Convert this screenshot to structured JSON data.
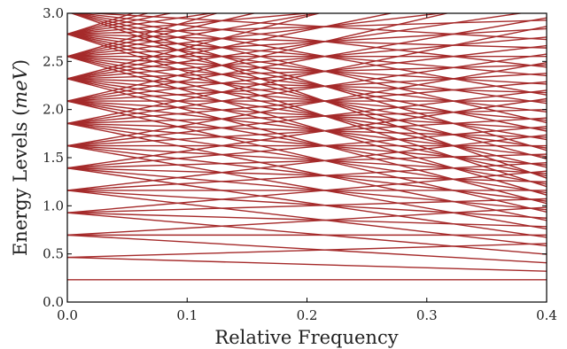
{
  "chart_data": {
    "type": "line",
    "title": "",
    "xlabel": "Relative Frequency",
    "ylabel": "Energy Levels (meV)",
    "ylabel_parts": {
      "text": "Energy Levels (",
      "unit": "meV",
      "close": ")"
    },
    "xlim": [
      0.0,
      0.4
    ],
    "ylim": [
      0.0,
      3.0
    ],
    "xticks": [
      "0.0",
      "0.1",
      "0.2",
      "0.3",
      "0.4"
    ],
    "yticks": [
      "0.0",
      "0.5",
      "1.0",
      "1.5",
      "2.0",
      "2.5",
      "3.0"
    ],
    "xtick_values": [
      0.0,
      0.1,
      0.2,
      0.3,
      0.4
    ],
    "ytick_values": [
      0.0,
      0.5,
      1.0,
      1.5,
      2.0,
      2.5,
      3.0
    ],
    "grid": false,
    "legend": false,
    "line_color": "#a52a2a",
    "description_of_series": "Energy levels E(n,m) = E0*(n+1/2) - m*f*k for n = 0..12, m = -n..n; levels fan out linearly from equally spaced starting energies",
    "series_model": {
      "e0_level_spacing": 0.232,
      "ground_level": 0.232,
      "slope_per_step": 0.36,
      "n_max": 12
    }
  }
}
